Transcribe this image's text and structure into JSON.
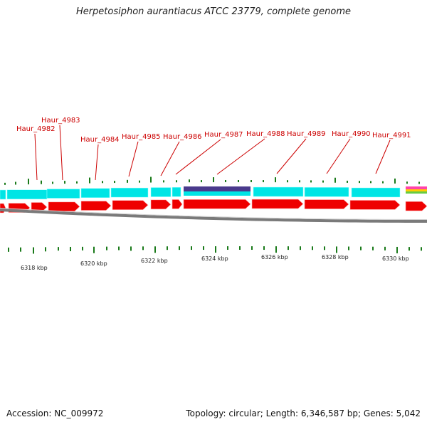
{
  "title": "Herpetosiphon aurantiacus ATCC 23779, complete genome",
  "footer": {
    "accession": "Accession: NC_009972",
    "summary": "Topology: circular; Length: 6,346,587 bp; Genes: 5,042"
  },
  "colors": {
    "gene_label": "#cc0000",
    "cds_forward": "#00e5e5",
    "cds_reverse": "#ee0000",
    "highlight": "#4a3a8c",
    "backbone": "#7a7a7a",
    "tick": "#1a7a1a"
  },
  "gene_labels": [
    {
      "text": "Haur_4982"
    },
    {
      "text": "Haur_4983"
    },
    {
      "text": "Haur_4984"
    },
    {
      "text": "Haur_4985"
    },
    {
      "text": "Haur_4986"
    },
    {
      "text": "Haur_4987"
    },
    {
      "text": "Haur_4988"
    },
    {
      "text": "Haur_4989"
    },
    {
      "text": "Haur_4990"
    },
    {
      "text": "Haur_4991"
    }
  ],
  "kbp_labels": [
    {
      "text": "6318 kbp"
    },
    {
      "text": "6320 kbp"
    },
    {
      "text": "6322 kbp"
    },
    {
      "text": "6324 kbp"
    },
    {
      "text": "6326 kbp"
    },
    {
      "text": "6328 kbp"
    },
    {
      "text": "6330 kbp"
    }
  ]
}
